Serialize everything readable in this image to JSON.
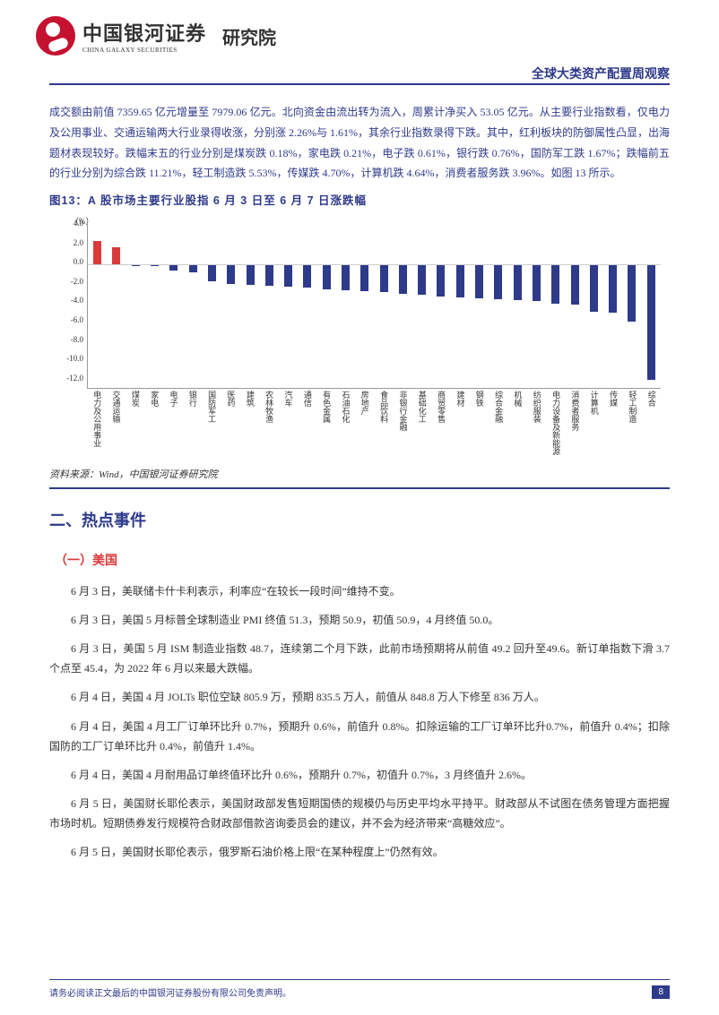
{
  "header": {
    "logo_cn": "中国银河证券",
    "logo_en": "CHINA GALAXY SECURITIES",
    "institute": "研究院",
    "report_series": "全球大类资产配置周观察"
  },
  "top_para": "成交额由前值 7359.65 亿元增量至 7979.06 亿元。北向资金由流出转为流入，周累计净买入 53.05 亿元。从主要行业指数看，仅电力及公用事业、交通运输两大行业录得收涨，分别涨 2.26%与 1.61%，其余行业指数录得下跌。其中，红利板块的防御属性凸显，出海题材表现较好。跌幅末五的行业分别是煤炭跌 0.18%，家电跌 0.21%，电子跌 0.61%，银行跌 0.76%，国防军工跌 1.67%；跌幅前五的行业分别为综合跌 11.21%，轻工制造跌 5.53%，传媒跌 4.70%，计算机跌 4.64%，消费者服务跌 3.96%。如图 13 所示。",
  "figure": {
    "title": "图13：A 股市场主要行业股指 6 月 3 日至 6 月 7 日涨跌幅",
    "unit": "（%）",
    "ylim": [
      -12,
      4
    ],
    "yticks": [
      "4.0",
      "2.0",
      "0.0",
      "-2.0",
      "-4.0",
      "-6.0",
      "-8.0",
      "-10.0",
      "-12.0"
    ],
    "positive_color": "#d93b3b",
    "negative_color": "#2e3a8a",
    "categories": [
      "电力及公用事业",
      "交通运输",
      "煤炭",
      "家电",
      "电子",
      "银行",
      "国防军工",
      "医药",
      "建筑",
      "农林牧渔",
      "汽车",
      "通信",
      "有色金属",
      "石油石化",
      "房地产",
      "食品饮料",
      "非银行金融",
      "基础化工",
      "商贸零售",
      "建材",
      "钢铁",
      "综合金融",
      "机械",
      "纺织服装",
      "电力设备及新能源",
      "消费者服务",
      "计算机",
      "传媒",
      "轻工制造",
      "综合"
    ],
    "values": [
      2.26,
      1.61,
      -0.18,
      -0.21,
      -0.61,
      -0.76,
      -1.67,
      -1.9,
      -2.0,
      -2.1,
      -2.2,
      -2.3,
      -2.4,
      -2.5,
      -2.6,
      -2.7,
      -2.9,
      -3.0,
      -3.1,
      -3.2,
      -3.3,
      -3.4,
      -3.5,
      -3.6,
      -3.8,
      -3.96,
      -4.64,
      -4.7,
      -5.53,
      -11.21
    ],
    "source": "资料来源：Wind，中国银河证券研究院"
  },
  "section2": {
    "heading": "二、热点事件",
    "sub1": {
      "heading": "（一）美国",
      "paras": [
        "6 月 3 日，美联储卡什卡利表示，利率应“在较长一段时间”维持不变。",
        "6 月 3 日，美国 5 月标普全球制造业 PMI 终值 51.3，预期 50.9，初值 50.9，4 月终值 50.0。",
        "6 月 3 日，美国 5 月 ISM 制造业指数 48.7，连续第二个月下跌，此前市场预期将从前值 49.2 回升至49.6。新订单指数下滑 3.7 个点至 45.4，为 2022 年 6 月以来最大跌幅。",
        "6 月 4 日，美国 4 月 JOLTs 职位空缺 805.9 万，预期 835.5 万人，前值从 848.8 万人下修至 836 万人。",
        "6 月 4 日，美国 4 月工厂订单环比升 0.7%，预期升 0.6%，前值升 0.8%。扣除运输的工厂订单环比升0.7%，前值升 0.4%；扣除国防的工厂订单环比升 0.4%，前值升 1.4%。",
        "6 月 4 日，美国 4 月耐用品订单终值环比升 0.6%，预期升 0.7%，初值升 0.7%，3 月终值升 2.6%。",
        "6 月 5 日，美国财长耶伦表示，美国财政部发售短期国债的规模仍与历史平均水平持平。财政部从不试图在债务管理方面把握市场时机。短期债券发行规模符合财政部借款咨询委员会的建议，并不会为经济带来“高糖效应”。",
        "6 月 5 日，美国财长耶伦表示，俄罗斯石油价格上限“在某种程度上”仍然有效。"
      ]
    }
  },
  "footer": {
    "disclaimer": "请务必阅读正文最后的中国银河证券股份有限公司免责声明。",
    "page": "8"
  }
}
